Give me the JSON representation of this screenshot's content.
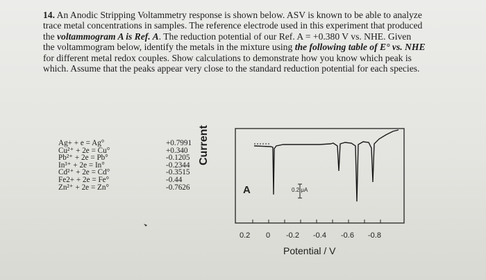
{
  "question": {
    "number": "14.",
    "lines": [
      {
        "plain": "An Anodic Stripping Voltammetry response is shown below. ASV is known to be able to analyze"
      },
      {
        "plain": "trace metal concentrations in samples. The reference electrode used in this experiment that produced"
      },
      {
        "pre": "the ",
        "bi": "voltammogram A is Ref. A",
        "post": ". The reduction potential of our Ref. A = +0.380 V vs. NHE. Given"
      },
      {
        "plain": "the voltammogram below, identify the metals in the mixture using"
      },
      {
        "pre": "",
        "bi": "the following table of E° vs. NHE",
        "post": ""
      },
      {
        "plain": "for different metal redox couples. Show calculations to demonstrate how you know which peak is"
      },
      {
        "plain": "which. Assume that the peaks appear very close to the standard reduction potential for each species."
      }
    ]
  },
  "reduction_table": [
    {
      "reaction": "Ag+ + e = Ag°",
      "potential": "+0.7991"
    },
    {
      "reaction": "Cu²⁺ + 2e = Cu°",
      "potential": "+0.340"
    },
    {
      "reaction": "Pb²⁺ + 2e = Pb°",
      "potential": "-0.1205"
    },
    {
      "reaction": "In³⁺ + 2e = In°",
      "potential": "-0.2344"
    },
    {
      "reaction": "Cd²⁺ + 2e = Cd°",
      "potential": "-0.3515"
    },
    {
      "reaction": "Fe2+ + 2e = Fe°",
      "potential": "-0.44"
    },
    {
      "reaction": "Zn²⁺ + 2e = Zn°",
      "potential": "-0.7626"
    }
  ],
  "voltammogram": {
    "panel_label": "A",
    "ylabel": "Current",
    "xlabel": "Potential / V",
    "scale_label": "0.2 μA",
    "xticks": [
      "0.2",
      "0",
      "-0.2",
      "-0.4",
      "-0.6",
      "-0.8"
    ]
  }
}
